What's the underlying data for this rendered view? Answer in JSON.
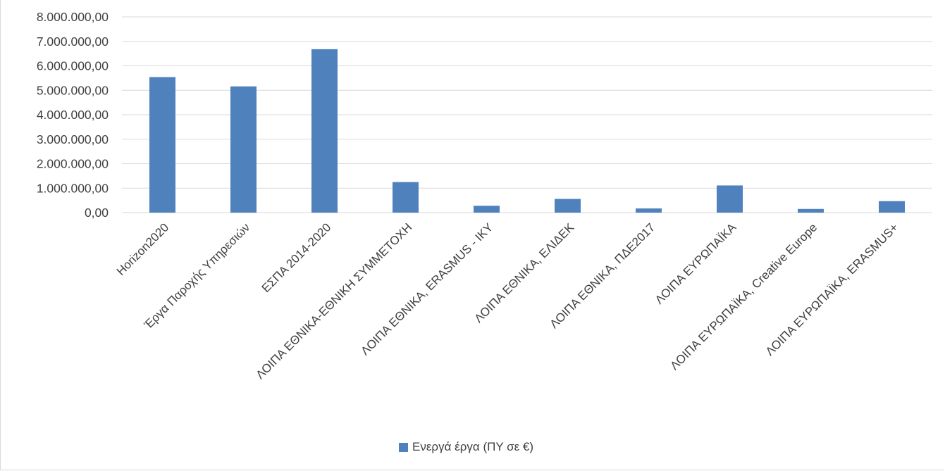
{
  "chart_data": {
    "type": "bar",
    "categories": [
      "Horizon2020",
      "Έργα Παροχής Υπηρεσιών",
      "ΕΣΠΑ 2014-2020",
      "ΛΟΙΠΑ ΕΘΝΙΚΑ-ΕΘΝΙΚΗ ΣΥΜΜΕΤΟΧΗ",
      "ΛΟΙΠΑ ΕΘΝΙΚΑ, ERASMUS - ΙΚΥ",
      "ΛΟΙΠΑ ΕΘΝΙΚΑ, ΕΛΙΔΕΚ",
      "ΛΟΙΠΑ ΕΘΝΙΚΑ, ΠΔΕ2017",
      "ΛΟΙΠΑ ΕΥΡΩΠΑΪΚΑ",
      "ΛΟΙΠΑ ΕΥΡΩΠΑΪΚΑ, Creative Europe",
      "ΛΟΙΠΑ ΕΥΡΩΠΑΪΚΑ, ERASMUS+"
    ],
    "series": [
      {
        "name": "Ενεργά έργα (ΠΥ σε €)",
        "color": "#4f81bd",
        "values": [
          5540000,
          5160000,
          6680000,
          1250000,
          280000,
          560000,
          170000,
          1110000,
          150000,
          470000
        ]
      }
    ],
    "ylim": [
      0,
      8000000
    ],
    "yticks": [
      "0,00",
      "1.000.000,00",
      "2.000.000,00",
      "3.000.000,00",
      "4.000.000,00",
      "5.000.000,00",
      "6.000.000,00",
      "7.000.000,00",
      "8.000.000,00"
    ],
    "grid": true,
    "legend_position": "bottom"
  }
}
